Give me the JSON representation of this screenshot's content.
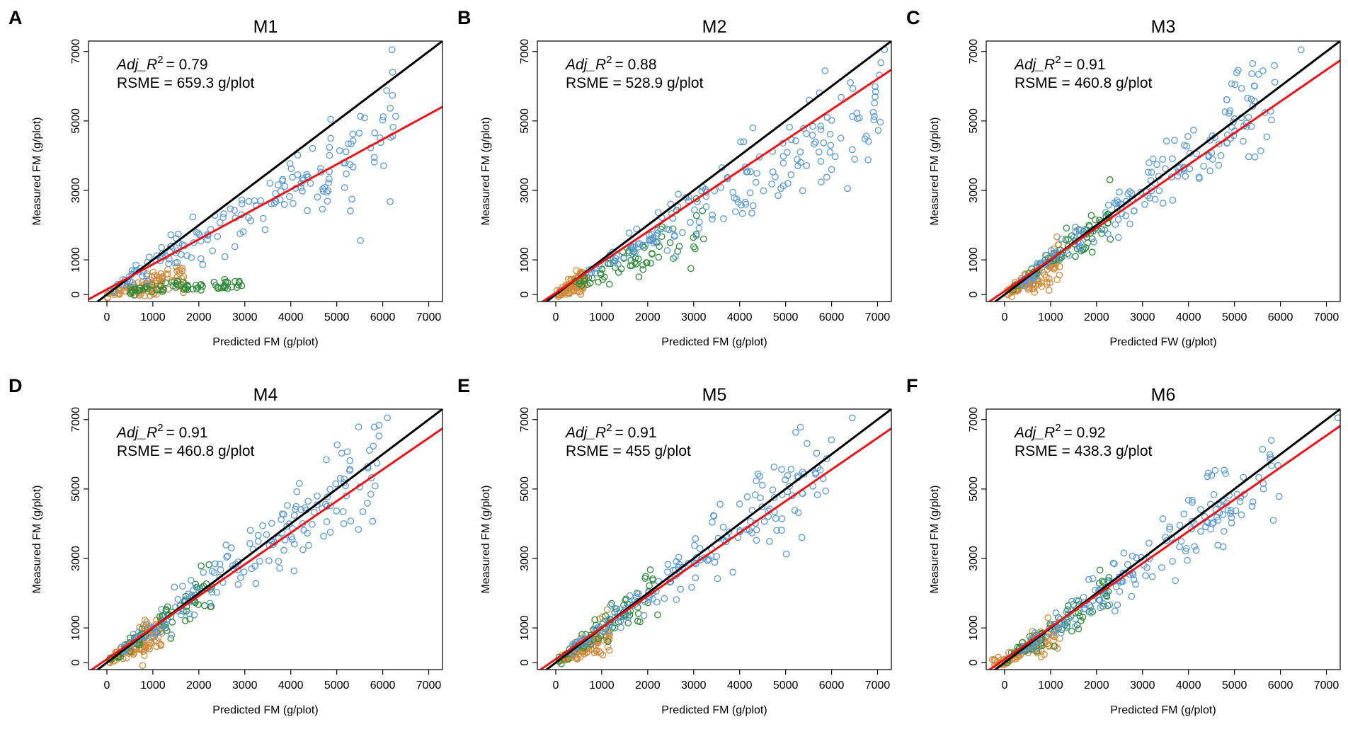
{
  "colors": {
    "tall": "#5b9bd5",
    "medium": "#2e8b3a",
    "short": "#d08a3c",
    "identity_line": "#000000",
    "fit_line": "#e8161a"
  },
  "chart_data": [
    {
      "type": "scatter",
      "letter": "A",
      "title": "M1",
      "xlabel": "Predicted FM (g/plot)",
      "ylabel": "Measured FM (g/plot)",
      "xlim": [
        -400,
        7300
      ],
      "ylim": [
        -200,
        7300
      ],
      "xticks": [
        "0",
        "1000",
        "2000",
        "3000",
        "4000",
        "5000",
        "6000",
        "7000"
      ],
      "yticks": [
        "0",
        "1000",
        "3000",
        "5000",
        "7000"
      ],
      "annotation": {
        "r2_prefix": "Adj_R",
        "r2_sup": "2",
        "r2_value": "= 0.79",
        "rsme": "RSME = 659.3 g/plot"
      },
      "fit_line": {
        "slope": 0.72,
        "intercept": 150
      },
      "identity_line": {
        "slope": 1,
        "intercept": 0
      },
      "cloud": {
        "blue": {
          "x": [
            100,
            6300
          ],
          "a": 1.8,
          "b": 0.9,
          "sd": 0.2,
          "n": 170
        },
        "green": {
          "x": [
            500,
            3000
          ],
          "a": 0.55,
          "b": 0.8,
          "sd": 0.3,
          "n": 70
        },
        "orange": {
          "x": [
            0,
            1700
          ],
          "a": 0.22,
          "b": 1.05,
          "sd": 0.45,
          "n": 110
        }
      },
      "outlier": [
        6200,
        7050
      ]
    },
    {
      "type": "scatter",
      "letter": "B",
      "title": "M2",
      "xlabel": "Predicted FM (g/plot)",
      "ylabel": "Measured FM (g/plot)",
      "xlim": [
        -400,
        7300
      ],
      "ylim": [
        -200,
        7300
      ],
      "xticks": [
        "0",
        "1000",
        "2000",
        "3000",
        "4000",
        "5000",
        "6000",
        "7000"
      ],
      "yticks": [
        "0",
        "1000",
        "3000",
        "5000",
        "7000"
      ],
      "annotation": {
        "r2_prefix": "Adj_R",
        "r2_sup": "2",
        "r2_value": "= 0.88",
        "rsme": "RSME = 528.9 g/plot"
      },
      "fit_line": {
        "slope": 0.88,
        "intercept": 50
      },
      "identity_line": {
        "slope": 1,
        "intercept": 0
      },
      "cloud": {
        "blue": {
          "x": [
            700,
            7100
          ],
          "a": 1.3,
          "b": 0.94,
          "sd": 0.17,
          "n": 170
        },
        "green": {
          "x": [
            400,
            3300
          ],
          "a": 0.9,
          "b": 0.95,
          "sd": 0.22,
          "n": 70
        },
        "orange": {
          "x": [
            0,
            650
          ],
          "a": 0.7,
          "b": 1.0,
          "sd": 0.45,
          "n": 110
        }
      },
      "outlier": [
        7150,
        7050
      ]
    },
    {
      "type": "scatter",
      "letter": "C",
      "title": "M3",
      "xlabel": "Predicted FW (g/plot)",
      "ylabel": "Measured FM (g/plot)",
      "xlim": [
        -400,
        7300
      ],
      "ylim": [
        -200,
        7300
      ],
      "xticks": [
        "0",
        "1000",
        "2000",
        "3000",
        "4000",
        "5000",
        "6000",
        "7000"
      ],
      "yticks": [
        "0",
        "1000",
        "3000",
        "5000",
        "7000"
      ],
      "annotation": {
        "r2_prefix": "Adj_R",
        "r2_sup": "2",
        "r2_value": "= 0.91",
        "rsme": "RSME = 460.8 g/plot"
      },
      "fit_line": {
        "slope": 0.91,
        "intercept": 100
      },
      "identity_line": {
        "slope": 1,
        "intercept": 0
      },
      "cloud": {
        "blue": {
          "x": [
            300,
            5900
          ],
          "a": 1.05,
          "b": 0.99,
          "sd": 0.15,
          "n": 170
        },
        "green": {
          "x": [
            100,
            2300
          ],
          "a": 1.2,
          "b": 0.97,
          "sd": 0.18,
          "n": 70
        },
        "orange": {
          "x": [
            50,
            1200
          ],
          "a": 0.75,
          "b": 1.0,
          "sd": 0.35,
          "n": 110
        }
      },
      "outlier": [
        6450,
        7050
      ]
    },
    {
      "type": "scatter",
      "letter": "D",
      "title": "M4",
      "xlabel": "Predicted FM (g/plot)",
      "ylabel": "Measured FM (g/plot)",
      "xlim": [
        -400,
        7300
      ],
      "ylim": [
        -200,
        7300
      ],
      "xticks": [
        "0",
        "1000",
        "2000",
        "3000",
        "4000",
        "5000",
        "6000",
        "7000"
      ],
      "yticks": [
        "0",
        "1000",
        "3000",
        "5000",
        "7000"
      ],
      "annotation": {
        "r2_prefix": "Adj_R",
        "r2_sup": "2",
        "r2_value": "= 0.91",
        "rsme": "RSME = 460.8 g/plot"
      },
      "fit_line": {
        "slope": 0.91,
        "intercept": 100
      },
      "identity_line": {
        "slope": 1,
        "intercept": 0
      },
      "cloud": {
        "blue": {
          "x": [
            300,
            6000
          ],
          "a": 1.05,
          "b": 0.99,
          "sd": 0.15,
          "n": 170
        },
        "green": {
          "x": [
            50,
            2300
          ],
          "a": 1.2,
          "b": 0.97,
          "sd": 0.18,
          "n": 70
        },
        "orange": {
          "x": [
            50,
            1200
          ],
          "a": 0.75,
          "b": 1.0,
          "sd": 0.35,
          "n": 110
        }
      },
      "outlier": [
        6100,
        7050
      ]
    },
    {
      "type": "scatter",
      "letter": "E",
      "title": "M5",
      "xlabel": "Predicted FM (g/plot)",
      "ylabel": "Measured FM (g/plot)",
      "xlim": [
        -400,
        7300
      ],
      "ylim": [
        -200,
        7300
      ],
      "xticks": [
        "0",
        "1000",
        "2000",
        "3000",
        "4000",
        "5000",
        "6000",
        "7000"
      ],
      "yticks": [
        "0",
        "1000",
        "3000",
        "5000",
        "7000"
      ],
      "annotation": {
        "r2_prefix": "Adj_R",
        "r2_sup": "2",
        "r2_value": "= 0.91",
        "rsme": "RSME = 455 g/plot"
      },
      "fit_line": {
        "slope": 0.91,
        "intercept": 100
      },
      "identity_line": {
        "slope": 1,
        "intercept": 0
      },
      "cloud": {
        "blue": {
          "x": [
            300,
            6000
          ],
          "a": 1.05,
          "b": 0.99,
          "sd": 0.15,
          "n": 170
        },
        "green": {
          "x": [
            50,
            2300
          ],
          "a": 1.2,
          "b": 0.97,
          "sd": 0.18,
          "n": 70
        },
        "orange": {
          "x": [
            50,
            1200
          ],
          "a": 0.75,
          "b": 1.0,
          "sd": 0.35,
          "n": 110
        }
      },
      "outlier": [
        6450,
        7050
      ]
    },
    {
      "type": "scatter",
      "letter": "F",
      "title": "M6",
      "xlabel": "Predicted FM (g/plot)",
      "ylabel": "Measured FM (g/plot)",
      "xlim": [
        -400,
        7300
      ],
      "ylim": [
        -200,
        7300
      ],
      "xticks": [
        "0",
        "1000",
        "2000",
        "3000",
        "4000",
        "5000",
        "6000",
        "7000"
      ],
      "yticks": [
        "0",
        "1000",
        "3000",
        "5000",
        "7000"
      ],
      "annotation": {
        "r2_prefix": "Adj_R",
        "r2_sup": "2",
        "r2_value": "= 0.92",
        "rsme": "RSME = 438.3 g/plot"
      },
      "fit_line": {
        "slope": 0.92,
        "intercept": 100
      },
      "identity_line": {
        "slope": 1,
        "intercept": 0
      },
      "cloud": {
        "blue": {
          "x": [
            300,
            6000
          ],
          "a": 1.03,
          "b": 0.99,
          "sd": 0.14,
          "n": 170
        },
        "green": {
          "x": [
            50,
            2300
          ],
          "a": 1.2,
          "b": 0.97,
          "sd": 0.18,
          "n": 70
        },
        "orange": {
          "x": [
            -300,
            1200
          ],
          "a": 0.75,
          "b": 1.0,
          "sd": 0.35,
          "n": 110
        }
      },
      "outlier": [
        7250,
        7050
      ]
    }
  ]
}
